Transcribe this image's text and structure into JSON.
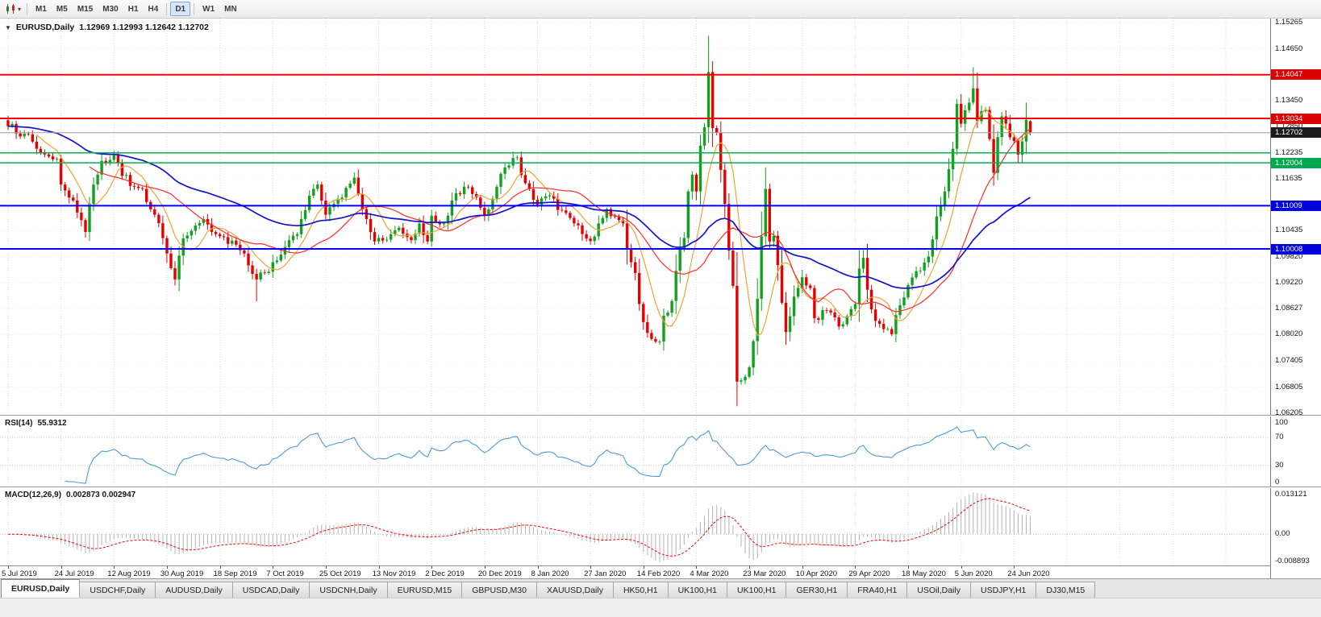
{
  "toolbar": {
    "timeframes": [
      "M1",
      "M5",
      "M15",
      "M30",
      "H1",
      "H4",
      "D1",
      "W1",
      "MN"
    ],
    "active_timeframe": "D1",
    "separators_after": [
      "H4",
      "D1"
    ]
  },
  "chart": {
    "header": {
      "symbol": "EURUSD,Daily",
      "ohlc": "1.12969 1.12993 1.12642 1.12702"
    }
  },
  "chart_data": {
    "type": "candlestick",
    "symbol": "EURUSD",
    "timeframe": "Daily",
    "n_candles": 252,
    "colors": {
      "bull": "#12a11f",
      "bear": "#e60000",
      "background": "#ffffff"
    },
    "price_axis": {
      "range": {
        "top": 1.1535,
        "bottom": 1.0616
      },
      "labels": [
        "1.15265",
        "1.14650",
        "1.13450",
        "1.12850",
        "1.12235",
        "1.11635",
        "1.10435",
        "1.09820",
        "1.09220",
        "1.08627",
        "1.08020",
        "1.07405",
        "1.06805",
        "1.06205"
      ],
      "badges": [
        {
          "text": "1.14047",
          "color": "#dd0000"
        },
        {
          "text": "1.13034",
          "color": "#dd0000"
        },
        {
          "text": "1.12702",
          "color": "#1c1c1c"
        },
        {
          "text": "1.12004",
          "color": "#00a84f"
        },
        {
          "text": "1.11009",
          "color": "#0000dd"
        },
        {
          "text": "1.10008",
          "color": "#0000dd"
        }
      ]
    },
    "hlines": [
      {
        "price": 1.14047,
        "color": "#ff0000",
        "width": 2
      },
      {
        "price": 1.13034,
        "color": "#ff0000",
        "width": 2
      },
      {
        "price": 1.12702,
        "color": "#9b9b9b",
        "width": 1
      },
      {
        "price": 1.12235,
        "color": "#00b050",
        "width": 1.5
      },
      {
        "price": 1.12004,
        "color": "#00b050",
        "width": 1.5
      },
      {
        "price": 1.11009,
        "color": "#0000ff",
        "width": 2
      },
      {
        "price": 1.10008,
        "color": "#0000ff",
        "width": 2
      }
    ],
    "dates": [
      "5 Jul 2019",
      "24 Jul 2019",
      "12 Aug 2019",
      "30 Aug 2019",
      "18 Sep 2019",
      "7 Oct 2019",
      "25 Oct 2019",
      "13 Nov 2019",
      "2 Dec 2019",
      "20 Dec 2019",
      "8 Jan 2020",
      "27 Jan 2020",
      "14 Feb 2020",
      "4 Mar 2020",
      "23 Mar 2020",
      "10 Apr 2020",
      "29 Apr 2020",
      "18 May 2020",
      "5 Jun 2020",
      "24 Jun 2020"
    ],
    "anchors": [
      [
        0,
        1.1285
      ],
      [
        4,
        1.1268
      ],
      [
        8,
        1.1225
      ],
      [
        12,
        1.121
      ],
      [
        13,
        1.115
      ],
      [
        15,
        1.112
      ],
      [
        17,
        1.1085
      ],
      [
        19,
        1.104
      ],
      [
        21,
        1.115
      ],
      [
        23,
        1.1205
      ],
      [
        26,
        1.1218
      ],
      [
        28,
        1.117
      ],
      [
        31,
        1.1145
      ],
      [
        33,
        1.114
      ],
      [
        36,
        1.108
      ],
      [
        39,
        1.099
      ],
      [
        41,
        1.093
      ],
      [
        43,
        1.1025
      ],
      [
        46,
        1.1055
      ],
      [
        48,
        1.107
      ],
      [
        52,
        1.103
      ],
      [
        55,
        1.102
      ],
      [
        58,
        1.099
      ],
      [
        61,
        1.093
      ],
      [
        63,
        1.0945
      ],
      [
        65,
        1.097
      ],
      [
        68,
        1.1005
      ],
      [
        71,
        1.1035
      ],
      [
        74,
        1.1124
      ],
      [
        76,
        1.115
      ],
      [
        78,
        1.108
      ],
      [
        80,
        1.1105
      ],
      [
        82,
        1.112
      ],
      [
        84,
        1.1152
      ],
      [
        85,
        1.1166
      ],
      [
        88,
        1.107
      ],
      [
        90,
        1.1018
      ],
      [
        93,
        1.1022
      ],
      [
        96,
        1.105
      ],
      [
        99,
        1.1021
      ],
      [
        101,
        1.106
      ],
      [
        103,
        1.1018
      ],
      [
        104,
        1.1078
      ],
      [
        107,
        1.106
      ],
      [
        110,
        1.113
      ],
      [
        112,
        1.1145
      ],
      [
        115,
        1.112
      ],
      [
        117,
        1.1078
      ],
      [
        121,
        1.1175
      ],
      [
        125,
        1.1213
      ],
      [
        126,
        1.1172
      ],
      [
        130,
        1.1103
      ],
      [
        133,
        1.1125
      ],
      [
        136,
        1.109
      ],
      [
        139,
        1.106
      ],
      [
        141,
        1.1035
      ],
      [
        143,
        1.1019
      ],
      [
        145,
        1.106
      ],
      [
        147,
        1.1093
      ],
      [
        149,
        1.1075
      ],
      [
        151,
        1.106
      ],
      [
        152,
        1.0999
      ],
      [
        153,
        1.097
      ],
      [
        154,
        1.0945
      ],
      [
        155,
        1.0873
      ],
      [
        156,
        1.0831
      ],
      [
        158,
        1.0792
      ],
      [
        160,
        1.0786
      ],
      [
        161,
        1.0846
      ],
      [
        162,
        1.0853
      ],
      [
        163,
        1.088
      ],
      [
        164,
        1.095
      ],
      [
        165,
        1.0999
      ],
      [
        166,
        1.1026
      ],
      [
        167,
        1.1134
      ],
      [
        168,
        1.1173
      ],
      [
        169,
        1.1134
      ],
      [
        170,
        1.124
      ],
      [
        171,
        1.1283
      ],
      [
        172,
        1.1411
      ],
      [
        173,
        1.1281
      ],
      [
        174,
        1.127
      ],
      [
        175,
        1.1184
      ],
      [
        176,
        1.1105
      ],
      [
        177,
        1.0997
      ],
      [
        178,
        1.0915
      ],
      [
        179,
        1.0693
      ],
      [
        180,
        1.0696
      ],
      [
        182,
        1.0726
      ],
      [
        183,
        1.0787
      ],
      [
        184,
        1.0885
      ],
      [
        185,
        1.103
      ],
      [
        186,
        1.114
      ],
      [
        187,
        1.1018
      ],
      [
        188,
        1.1031
      ],
      [
        189,
        1.0963
      ],
      [
        191,
        1.0808
      ],
      [
        193,
        1.089
      ],
      [
        195,
        1.0935
      ],
      [
        197,
        1.091
      ],
      [
        198,
        1.084
      ],
      [
        201,
        1.0858
      ],
      [
        204,
        1.0821
      ],
      [
        206,
        1.0845
      ],
      [
        208,
        1.0873
      ],
      [
        209,
        1.0955
      ],
      [
        210,
        1.098
      ],
      [
        211,
        1.0906
      ],
      [
        213,
        1.0834
      ],
      [
        216,
        1.0815
      ],
      [
        217,
        1.0803
      ],
      [
        219,
        1.087
      ],
      [
        221,
        1.0917
      ],
      [
        223,
        1.0949
      ],
      [
        226,
        1.0983
      ],
      [
        228,
        1.1076
      ],
      [
        229,
        1.1102
      ],
      [
        230,
        1.1134
      ],
      [
        232,
        1.1233
      ],
      [
        233,
        1.1337
      ],
      [
        234,
        1.1291
      ],
      [
        236,
        1.134
      ],
      [
        237,
        1.1373
      ],
      [
        238,
        1.1297
      ],
      [
        240,
        1.1323
      ],
      [
        242,
        1.1177
      ],
      [
        243,
        1.126
      ],
      [
        244,
        1.1308
      ],
      [
        247,
        1.1251
      ],
      [
        248,
        1.1219
      ],
      [
        249,
        1.125
      ],
      [
        250,
        1.13
      ],
      [
        251,
        1.12702
      ]
    ],
    "overrides": {
      "19": {
        "low": 1.1027
      },
      "61": {
        "low": 1.0879
      },
      "160": {
        "low": 1.0778
      },
      "172": {
        "high": 1.1495
      },
      "179": {
        "low": 1.0636
      },
      "237": {
        "high": 1.1422
      },
      "250": {
        "high": 1.134
      },
      "251": {
        "open": 1.12969,
        "high": 1.12993,
        "low": 1.12642,
        "close": 1.12702
      }
    },
    "moving_averages": [
      {
        "period": 8,
        "method": "sma",
        "color": "#efa333",
        "width": 1.2
      },
      {
        "period": 21,
        "method": "sma",
        "color": "#ff2a2a",
        "width": 1.2
      },
      {
        "period": 55,
        "method": "ema",
        "color": "#1414cc",
        "width": 1.7
      }
    ],
    "rsi": {
      "label": "RSI(14)",
      "value": "55.9312",
      "period": 14,
      "color": "#4f9bd6",
      "levels_drawn": [
        70,
        30
      ],
      "axis_labels": [
        "100",
        "70",
        "30",
        "0"
      ]
    },
    "macd": {
      "label": "MACD(12,26,9)",
      "values": "0.002873 0.002947",
      "fast": 12,
      "slow": 26,
      "signal": 9,
      "histogram_color": "#b4b4b4",
      "signal_color": "#ff0000",
      "range": {
        "top": 0.013121,
        "bottom": -0.008893
      },
      "axis": {
        "top": "0.013121",
        "zero": "0.00",
        "bottom": "-0.008893"
      }
    }
  },
  "tabs": {
    "active_index": 0,
    "items": [
      "EURUSD,Daily",
      "USDCHF,Daily",
      "AUDUSD,Daily",
      "USDCAD,Daily",
      "USDCNH,Daily",
      "EURUSD,M15",
      "GBPUSD,M30",
      "XAUUSD,Daily",
      "HK50,H1",
      "UK100,H1",
      "UK100,H1",
      "GER30,H1",
      "FRA40,H1",
      "USOil,Daily",
      "USDJPY,H1",
      "DJ30,M15"
    ]
  }
}
